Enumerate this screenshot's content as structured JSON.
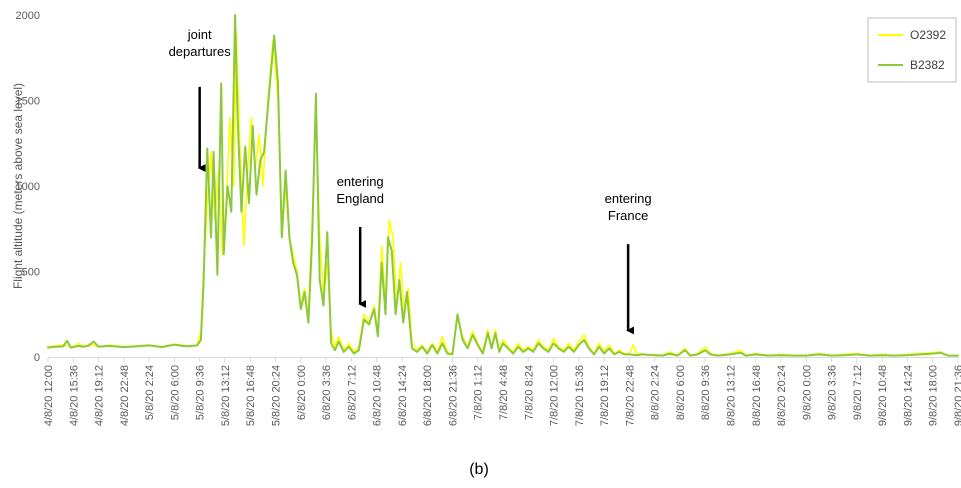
{
  "chart_data": {
    "type": "line",
    "ylabel": "Flight altitude (meters above sea level)",
    "ylim": [
      0,
      2000
    ],
    "yticks": [
      0,
      500,
      1000,
      1500,
      2000
    ],
    "grid": false,
    "legend_position": "top-right",
    "caption": "(b)",
    "xtick_labels": [
      "4/8/20 12:00",
      "4/8/20 15:36",
      "4/8/20 19:12",
      "4/8/20 22:48",
      "5/8/20 2:24",
      "5/8/20 6:00",
      "5/8/20 9:36",
      "5/8/20 13:12",
      "5/8/20 16:48",
      "5/8/20 20:24",
      "6/8/20 0:00",
      "6/8/20 3:36",
      "6/8/20 7:12",
      "6/8/20 10:48",
      "6/8/20 14:24",
      "6/8/20 18:00",
      "6/8/20 21:36",
      "7/8/20 1:12",
      "7/8/20 4:48",
      "7/8/20 8:24",
      "7/8/20 12:00",
      "7/8/20 15:36",
      "7/8/20 19:12",
      "7/8/20 22:48",
      "8/8/20 2:24",
      "8/8/20 6:00",
      "8/8/20 9:36",
      "8/8/20 13:12",
      "8/8/20 16:48",
      "8/8/20 20:24",
      "9/8/20 0:00",
      "9/8/20 3:36",
      "9/8/20 7:12",
      "9/8/20 10:48",
      "9/8/20 14:24",
      "9/8/20 18:00",
      "9/8/20 21:36"
    ],
    "series": [
      {
        "name": "O2392",
        "color": "#ffff00",
        "width": 1.6,
        "points": [
          [
            0,
            60
          ],
          [
            0.3,
            65
          ],
          [
            0.6,
            70
          ],
          [
            1,
            55
          ],
          [
            1.2,
            80
          ],
          [
            1.4,
            60
          ],
          [
            1.6,
            75
          ],
          [
            2,
            60
          ],
          [
            2.4,
            70
          ],
          [
            3,
            60
          ],
          [
            3.5,
            65
          ],
          [
            4,
            70
          ],
          [
            4.5,
            60
          ],
          [
            5,
            75
          ],
          [
            5.5,
            65
          ],
          [
            5.9,
            70
          ],
          [
            6.05,
            150
          ],
          [
            6.15,
            500
          ],
          [
            6.3,
            900
          ],
          [
            6.45,
            1200
          ],
          [
            6.6,
            800
          ],
          [
            6.75,
            1100
          ],
          [
            6.9,
            600
          ],
          [
            7.05,
            900
          ],
          [
            7.2,
            1400
          ],
          [
            7.35,
            1000
          ],
          [
            7.45,
            1900
          ],
          [
            7.6,
            1200
          ],
          [
            7.75,
            650
          ],
          [
            7.9,
            1100
          ],
          [
            8.05,
            1400
          ],
          [
            8.2,
            1100
          ],
          [
            8.35,
            1300
          ],
          [
            8.5,
            1000
          ],
          [
            8.7,
            1500
          ],
          [
            8.9,
            1850
          ],
          [
            9.1,
            1500
          ],
          [
            9.25,
            700
          ],
          [
            9.4,
            1000
          ],
          [
            9.55,
            700
          ],
          [
            9.7,
            600
          ],
          [
            9.85,
            500
          ],
          [
            10,
            300
          ],
          [
            10.15,
            400
          ],
          [
            10.3,
            250
          ],
          [
            10.45,
            800
          ],
          [
            10.6,
            1450
          ],
          [
            10.75,
            700
          ],
          [
            10.9,
            350
          ],
          [
            11.05,
            550
          ],
          [
            11.2,
            150
          ],
          [
            11.35,
            60
          ],
          [
            11.5,
            120
          ],
          [
            11.7,
            40
          ],
          [
            11.9,
            80
          ],
          [
            12.1,
            30
          ],
          [
            12.3,
            60
          ],
          [
            12.5,
            250
          ],
          [
            12.7,
            200
          ],
          [
            12.9,
            300
          ],
          [
            13.05,
            150
          ],
          [
            13.2,
            650
          ],
          [
            13.35,
            300
          ],
          [
            13.5,
            800
          ],
          [
            13.65,
            700
          ],
          [
            13.8,
            300
          ],
          [
            13.95,
            550
          ],
          [
            14.1,
            250
          ],
          [
            14.25,
            400
          ],
          [
            14.4,
            80
          ],
          [
            14.6,
            40
          ],
          [
            14.8,
            70
          ],
          [
            15,
            30
          ],
          [
            15.2,
            80
          ],
          [
            15.4,
            30
          ],
          [
            15.6,
            120
          ],
          [
            15.8,
            30
          ],
          [
            16,
            20
          ],
          [
            16.2,
            230
          ],
          [
            16.4,
            120
          ],
          [
            16.6,
            60
          ],
          [
            16.8,
            150
          ],
          [
            17,
            80
          ],
          [
            17.2,
            30
          ],
          [
            17.4,
            160
          ],
          [
            17.55,
            60
          ],
          [
            17.7,
            160
          ],
          [
            17.85,
            40
          ],
          [
            18,
            100
          ],
          [
            18.2,
            60
          ],
          [
            18.4,
            30
          ],
          [
            18.6,
            80
          ],
          [
            18.8,
            40
          ],
          [
            19,
            60
          ],
          [
            19.2,
            40
          ],
          [
            19.4,
            100
          ],
          [
            19.6,
            60
          ],
          [
            19.8,
            40
          ],
          [
            20,
            110
          ],
          [
            20.2,
            60
          ],
          [
            20.4,
            40
          ],
          [
            20.6,
            80
          ],
          [
            20.8,
            40
          ],
          [
            21,
            90
          ],
          [
            21.2,
            130
          ],
          [
            21.4,
            60
          ],
          [
            21.6,
            20
          ],
          [
            21.8,
            80
          ],
          [
            22,
            30
          ],
          [
            22.2,
            70
          ],
          [
            22.4,
            20
          ],
          [
            22.6,
            40
          ],
          [
            22.8,
            20
          ],
          [
            23,
            20
          ],
          [
            23.15,
            70
          ],
          [
            23.3,
            15
          ],
          [
            23.5,
            20
          ],
          [
            23.7,
            10
          ],
          [
            24,
            15
          ],
          [
            24.3,
            10
          ],
          [
            24.6,
            30
          ],
          [
            24.9,
            10
          ],
          [
            25.2,
            50
          ],
          [
            25.4,
            10
          ],
          [
            25.7,
            20
          ],
          [
            26,
            60
          ],
          [
            26.2,
            20
          ],
          [
            26.5,
            10
          ],
          [
            27,
            20
          ],
          [
            27.4,
            40
          ],
          [
            27.6,
            10
          ],
          [
            28,
            20
          ],
          [
            28.5,
            10
          ],
          [
            29,
            15
          ],
          [
            29.5,
            10
          ],
          [
            30,
            10
          ],
          [
            30.5,
            20
          ],
          [
            31,
            10
          ],
          [
            31.5,
            15
          ],
          [
            32,
            20
          ],
          [
            32.5,
            10
          ],
          [
            33,
            15
          ],
          [
            33.5,
            10
          ],
          [
            34,
            15
          ],
          [
            34.5,
            20
          ],
          [
            35,
            25
          ],
          [
            35.3,
            30
          ],
          [
            35.6,
            10
          ],
          [
            36,
            10
          ]
        ]
      },
      {
        "name": "B2382",
        "color": "#8cc83c",
        "width": 2.0,
        "points": [
          [
            0,
            55
          ],
          [
            0.3,
            60
          ],
          [
            0.6,
            62
          ],
          [
            0.75,
            95
          ],
          [
            0.9,
            55
          ],
          [
            1.2,
            65
          ],
          [
            1.4,
            60
          ],
          [
            1.6,
            65
          ],
          [
            1.8,
            90
          ],
          [
            2,
            60
          ],
          [
            2.4,
            65
          ],
          [
            3,
            58
          ],
          [
            3.5,
            62
          ],
          [
            4,
            68
          ],
          [
            4.5,
            58
          ],
          [
            5,
            72
          ],
          [
            5.5,
            62
          ],
          [
            5.9,
            68
          ],
          [
            6.05,
            100
          ],
          [
            6.15,
            420
          ],
          [
            6.3,
            1220
          ],
          [
            6.45,
            700
          ],
          [
            6.55,
            1200
          ],
          [
            6.7,
            480
          ],
          [
            6.85,
            1600
          ],
          [
            6.95,
            600
          ],
          [
            7.1,
            1000
          ],
          [
            7.25,
            850
          ],
          [
            7.4,
            2000
          ],
          [
            7.5,
            1400
          ],
          [
            7.65,
            850
          ],
          [
            7.8,
            1230
          ],
          [
            7.95,
            900
          ],
          [
            8.1,
            1350
          ],
          [
            8.25,
            950
          ],
          [
            8.4,
            1150
          ],
          [
            8.55,
            1200
          ],
          [
            8.75,
            1550
          ],
          [
            8.95,
            1880
          ],
          [
            9.1,
            1600
          ],
          [
            9.25,
            700
          ],
          [
            9.4,
            1090
          ],
          [
            9.55,
            700
          ],
          [
            9.7,
            550
          ],
          [
            9.85,
            480
          ],
          [
            10,
            280
          ],
          [
            10.15,
            380
          ],
          [
            10.3,
            200
          ],
          [
            10.45,
            700
          ],
          [
            10.6,
            1540
          ],
          [
            10.75,
            450
          ],
          [
            10.9,
            300
          ],
          [
            11.05,
            730
          ],
          [
            11.2,
            80
          ],
          [
            11.35,
            40
          ],
          [
            11.5,
            90
          ],
          [
            11.7,
            30
          ],
          [
            11.9,
            60
          ],
          [
            12.1,
            20
          ],
          [
            12.3,
            40
          ],
          [
            12.5,
            220
          ],
          [
            12.7,
            190
          ],
          [
            12.9,
            280
          ],
          [
            13.05,
            120
          ],
          [
            13.2,
            550
          ],
          [
            13.35,
            250
          ],
          [
            13.45,
            700
          ],
          [
            13.6,
            620
          ],
          [
            13.75,
            250
          ],
          [
            13.9,
            450
          ],
          [
            14.05,
            200
          ],
          [
            14.2,
            380
          ],
          [
            14.4,
            50
          ],
          [
            14.6,
            30
          ],
          [
            14.8,
            60
          ],
          [
            15,
            20
          ],
          [
            15.2,
            70
          ],
          [
            15.4,
            20
          ],
          [
            15.6,
            80
          ],
          [
            15.8,
            20
          ],
          [
            16,
            15
          ],
          [
            16.2,
            250
          ],
          [
            16.4,
            100
          ],
          [
            16.6,
            50
          ],
          [
            16.8,
            130
          ],
          [
            17,
            70
          ],
          [
            17.2,
            20
          ],
          [
            17.4,
            140
          ],
          [
            17.55,
            50
          ],
          [
            17.7,
            140
          ],
          [
            17.85,
            30
          ],
          [
            18,
            80
          ],
          [
            18.2,
            50
          ],
          [
            18.4,
            20
          ],
          [
            18.6,
            60
          ],
          [
            18.8,
            30
          ],
          [
            19,
            50
          ],
          [
            19.2,
            30
          ],
          [
            19.4,
            80
          ],
          [
            19.6,
            50
          ],
          [
            19.8,
            30
          ],
          [
            20,
            80
          ],
          [
            20.2,
            50
          ],
          [
            20.4,
            30
          ],
          [
            20.6,
            60
          ],
          [
            20.8,
            30
          ],
          [
            21,
            70
          ],
          [
            21.2,
            100
          ],
          [
            21.4,
            50
          ],
          [
            21.6,
            15
          ],
          [
            21.8,
            60
          ],
          [
            22,
            20
          ],
          [
            22.2,
            50
          ],
          [
            22.4,
            15
          ],
          [
            22.6,
            30
          ],
          [
            22.8,
            15
          ],
          [
            23,
            15
          ],
          [
            23.3,
            10
          ],
          [
            23.5,
            15
          ],
          [
            24,
            10
          ],
          [
            24.3,
            8
          ],
          [
            24.6,
            20
          ],
          [
            24.9,
            8
          ],
          [
            25.2,
            40
          ],
          [
            25.4,
            8
          ],
          [
            25.7,
            15
          ],
          [
            26,
            40
          ],
          [
            26.2,
            15
          ],
          [
            26.5,
            8
          ],
          [
            27,
            15
          ],
          [
            27.4,
            25
          ],
          [
            27.6,
            8
          ],
          [
            28,
            15
          ],
          [
            28.5,
            8
          ],
          [
            29,
            10
          ],
          [
            29.5,
            8
          ],
          [
            30,
            8
          ],
          [
            30.5,
            15
          ],
          [
            31,
            8
          ],
          [
            31.5,
            10
          ],
          [
            32,
            15
          ],
          [
            32.5,
            8
          ],
          [
            33,
            10
          ],
          [
            33.5,
            8
          ],
          [
            34,
            10
          ],
          [
            34.5,
            15
          ],
          [
            35,
            20
          ],
          [
            35.3,
            25
          ],
          [
            35.6,
            8
          ],
          [
            36,
            8
          ]
        ]
      }
    ],
    "annotations": [
      {
        "lines": [
          "joint",
          "departures"
        ],
        "x": 6.0,
        "arrow_from": 1580,
        "arrow_to": 1070,
        "text_top": 1860
      },
      {
        "lines": [
          "entering",
          "England"
        ],
        "x": 12.35,
        "arrow_from": 760,
        "arrow_to": 275,
        "text_top": 1000
      },
      {
        "lines": [
          "entering",
          "France"
        ],
        "x": 22.95,
        "arrow_from": 660,
        "arrow_to": 120,
        "text_top": 900
      }
    ]
  }
}
